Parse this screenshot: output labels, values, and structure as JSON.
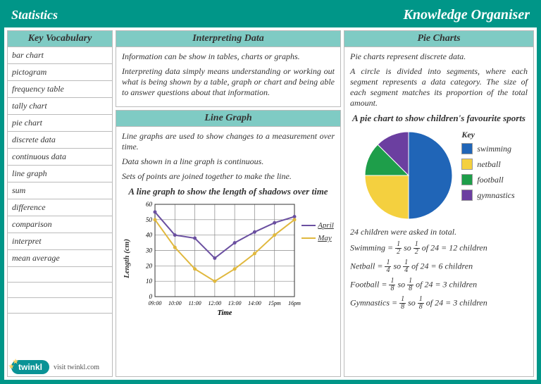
{
  "header": {
    "left": "Statistics",
    "right": "Knowledge Organiser"
  },
  "vocab": {
    "title": "Key Vocabulary",
    "items": [
      "bar chart",
      "pictogram",
      "frequency table",
      "tally chart",
      "pie chart",
      "discrete data",
      "continuous data",
      "line graph",
      "sum",
      "difference",
      "comparison",
      "interpret",
      "mean average"
    ]
  },
  "interpreting": {
    "title": "Interpreting Data",
    "p1": "Information can be show in tables, charts or graphs.",
    "p2": "Interpreting data simply means understanding or working out what is being shown by a table, graph or chart and being able to answer questions about that information."
  },
  "linegraph": {
    "title": "Line Graph",
    "p1": "Line graphs are used to show changes to a measurement over time.",
    "p2": "Data shown in a line graph is continuous.",
    "p3": "Sets of points are joined together to make the line.",
    "chart_title": "A line graph to show the length of shadows over time",
    "ylabel": "Length (cm)",
    "xlabel": "Time",
    "ylim": [
      0,
      60
    ],
    "ytick_step": 10,
    "xticks": [
      "09:00",
      "10:00",
      "11:00",
      "12:00",
      "13:00",
      "14:00",
      "15pm",
      "16pm"
    ],
    "series": [
      {
        "name": "April",
        "color": "#6a4fa0",
        "values": [
          55,
          40,
          38,
          25,
          35,
          42,
          48,
          52
        ]
      },
      {
        "name": "May",
        "color": "#e0b83e",
        "values": [
          50,
          32,
          18,
          10,
          18,
          28,
          40,
          50
        ]
      }
    ],
    "grid_color": "#888",
    "background": "#ffffff"
  },
  "pie": {
    "title": "Pie Charts",
    "p1": "Pie charts represent discrete data.",
    "p2": "A circle is divided into segments, where each segment represents a data category. The size of each segment matches its proportion of the total amount.",
    "chart_title": "A pie chart to show children's favourite sports",
    "key_label": "Key",
    "slices": [
      {
        "label": "swimming",
        "color": "#2065b7",
        "fraction": 0.5
      },
      {
        "label": "netball",
        "color": "#f4d03f",
        "fraction": 0.25
      },
      {
        "label": "football",
        "color": "#1e9e4a",
        "fraction": 0.125
      },
      {
        "label": "gymnastics",
        "color": "#6b3fa0",
        "fraction": 0.125
      }
    ],
    "facts_intro": "24 children were asked in total.",
    "facts": [
      {
        "label": "Swimming",
        "num": 1,
        "den": 2,
        "total": 24,
        "result": 12,
        "unit": "children"
      },
      {
        "label": "Netball",
        "num": 1,
        "den": 4,
        "total": 24,
        "result": 6,
        "unit": "children"
      },
      {
        "label": "Football",
        "num": 1,
        "den": 8,
        "total": 24,
        "result": 3,
        "unit": "children"
      },
      {
        "label": "Gymnastics",
        "num": 1,
        "den": 8,
        "total": 24,
        "result": 3,
        "unit": "children"
      }
    ]
  },
  "footer": {
    "brand": "twinkl",
    "url": "visit twinkl.com"
  }
}
